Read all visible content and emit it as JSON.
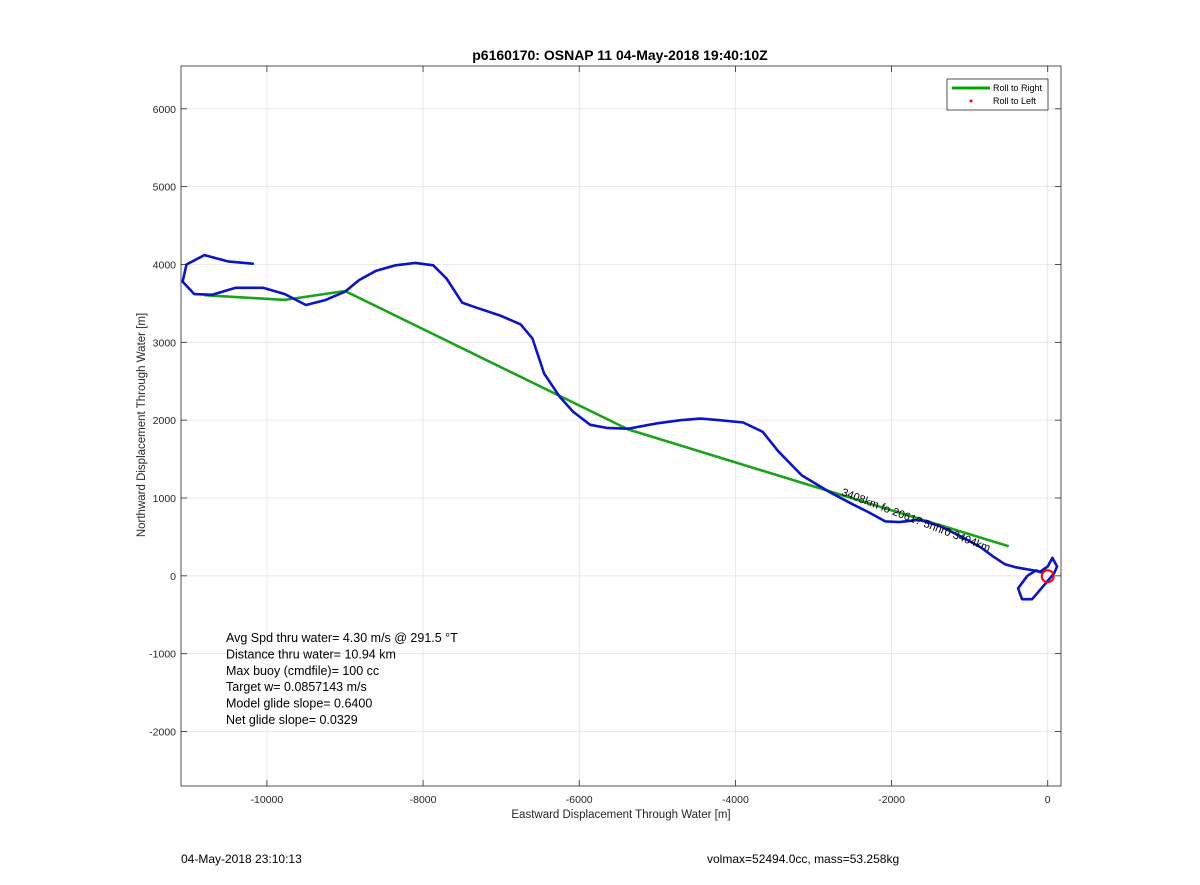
{
  "chart_data": {
    "type": "line",
    "title": "p6160170: OSNAP 11 04-May-2018 19:40:10Z",
    "xlabel": "Eastward Displacement Through Water [m]",
    "ylabel": "Northward Displacement Through Water [m]",
    "xlim": [
      -11100,
      170
    ],
    "ylim": [
      -2700,
      6550
    ],
    "grid": true,
    "x_ticks": [
      -10000,
      -8000,
      -6000,
      -4000,
      -2000,
      0
    ],
    "x_tick_labels": [
      "-10000",
      "-8000",
      "-6000",
      "-4000",
      "-2000",
      "0"
    ],
    "y_ticks": [
      -2000,
      -1000,
      0,
      1000,
      2000,
      3000,
      4000,
      5000,
      6000
    ],
    "y_tick_labels": [
      "-2000",
      "-1000",
      "0",
      "1000",
      "2000",
      "3000",
      "4000",
      "5000",
      "6000"
    ],
    "legend_position": "top-right",
    "legend": [
      {
        "label": "Roll to Right",
        "color": "#00aa00",
        "style": "line"
      },
      {
        "label": "Roll to Left",
        "color": "#ff0000",
        "style": "dot"
      }
    ],
    "series": [
      {
        "name": "Roll to Right",
        "color": "#1aa31a",
        "x": [
          -10800,
          -9770,
          -9000,
          -5370,
          -500
        ],
        "y": [
          3605,
          3545,
          3660,
          1880,
          380
        ]
      },
      {
        "color": "#0a14c8",
        "x": [
          -10180,
          -10500,
          -10800,
          -11030,
          -11080,
          -10930,
          -10700,
          -10400,
          -10050,
          -9770,
          -9500,
          -9260,
          -9000,
          -8820,
          -8600,
          -8350,
          -8100,
          -7870,
          -7700,
          -7500,
          -7330,
          -7000,
          -6750,
          -6600,
          -6450,
          -6250,
          -6080,
          -5860,
          -5650,
          -5370,
          -5000,
          -4700,
          -4450,
          -4200,
          -3900,
          -3650,
          -3450,
          -3150,
          -2800,
          -2500,
          -2300,
          -2080,
          -1900,
          -1650,
          -1380,
          -1100,
          -850,
          -700,
          -550,
          -410,
          -300,
          -180,
          -100,
          0,
          60,
          120,
          80,
          -30,
          -200,
          -330,
          -380,
          -260,
          -150,
          -70
        ],
        "y": [
          4010,
          4040,
          4120,
          4000,
          3780,
          3620,
          3610,
          3700,
          3700,
          3620,
          3480,
          3540,
          3650,
          3800,
          3920,
          3990,
          4020,
          3990,
          3820,
          3510,
          3450,
          3340,
          3230,
          3050,
          2600,
          2300,
          2110,
          1940,
          1900,
          1890,
          1960,
          2000,
          2020,
          2000,
          1970,
          1850,
          1600,
          1290,
          1080,
          920,
          820,
          700,
          690,
          720,
          640,
          500,
          360,
          250,
          150,
          110,
          90,
          70,
          50,
          120,
          230,
          120,
          30,
          -100,
          -300,
          -300,
          -160,
          0,
          70,
          40
        ]
      }
    ],
    "end_marker": {
      "x": 0,
      "y": -5,
      "color": "#ff0000"
    },
    "annotation_text": "3408km fo 2061? 5nhr0 3404km",
    "annotation_position": {
      "x": -2650,
      "y": 1040
    },
    "stats": [
      "Avg Spd thru water=  4.30 m/s @ 291.5 °T",
      "Distance thru water= 10.94 km",
      "Max buoy (cmdfile)= 100 cc",
      "Target w= 0.0857143 m/s",
      "Model glide slope= 0.6400",
      "Net glide slope= 0.0329"
    ]
  },
  "footer": {
    "timestamp": "04-May-2018 23:10:13",
    "volmax": "volmax=52494.0cc, mass=53.258kg"
  }
}
